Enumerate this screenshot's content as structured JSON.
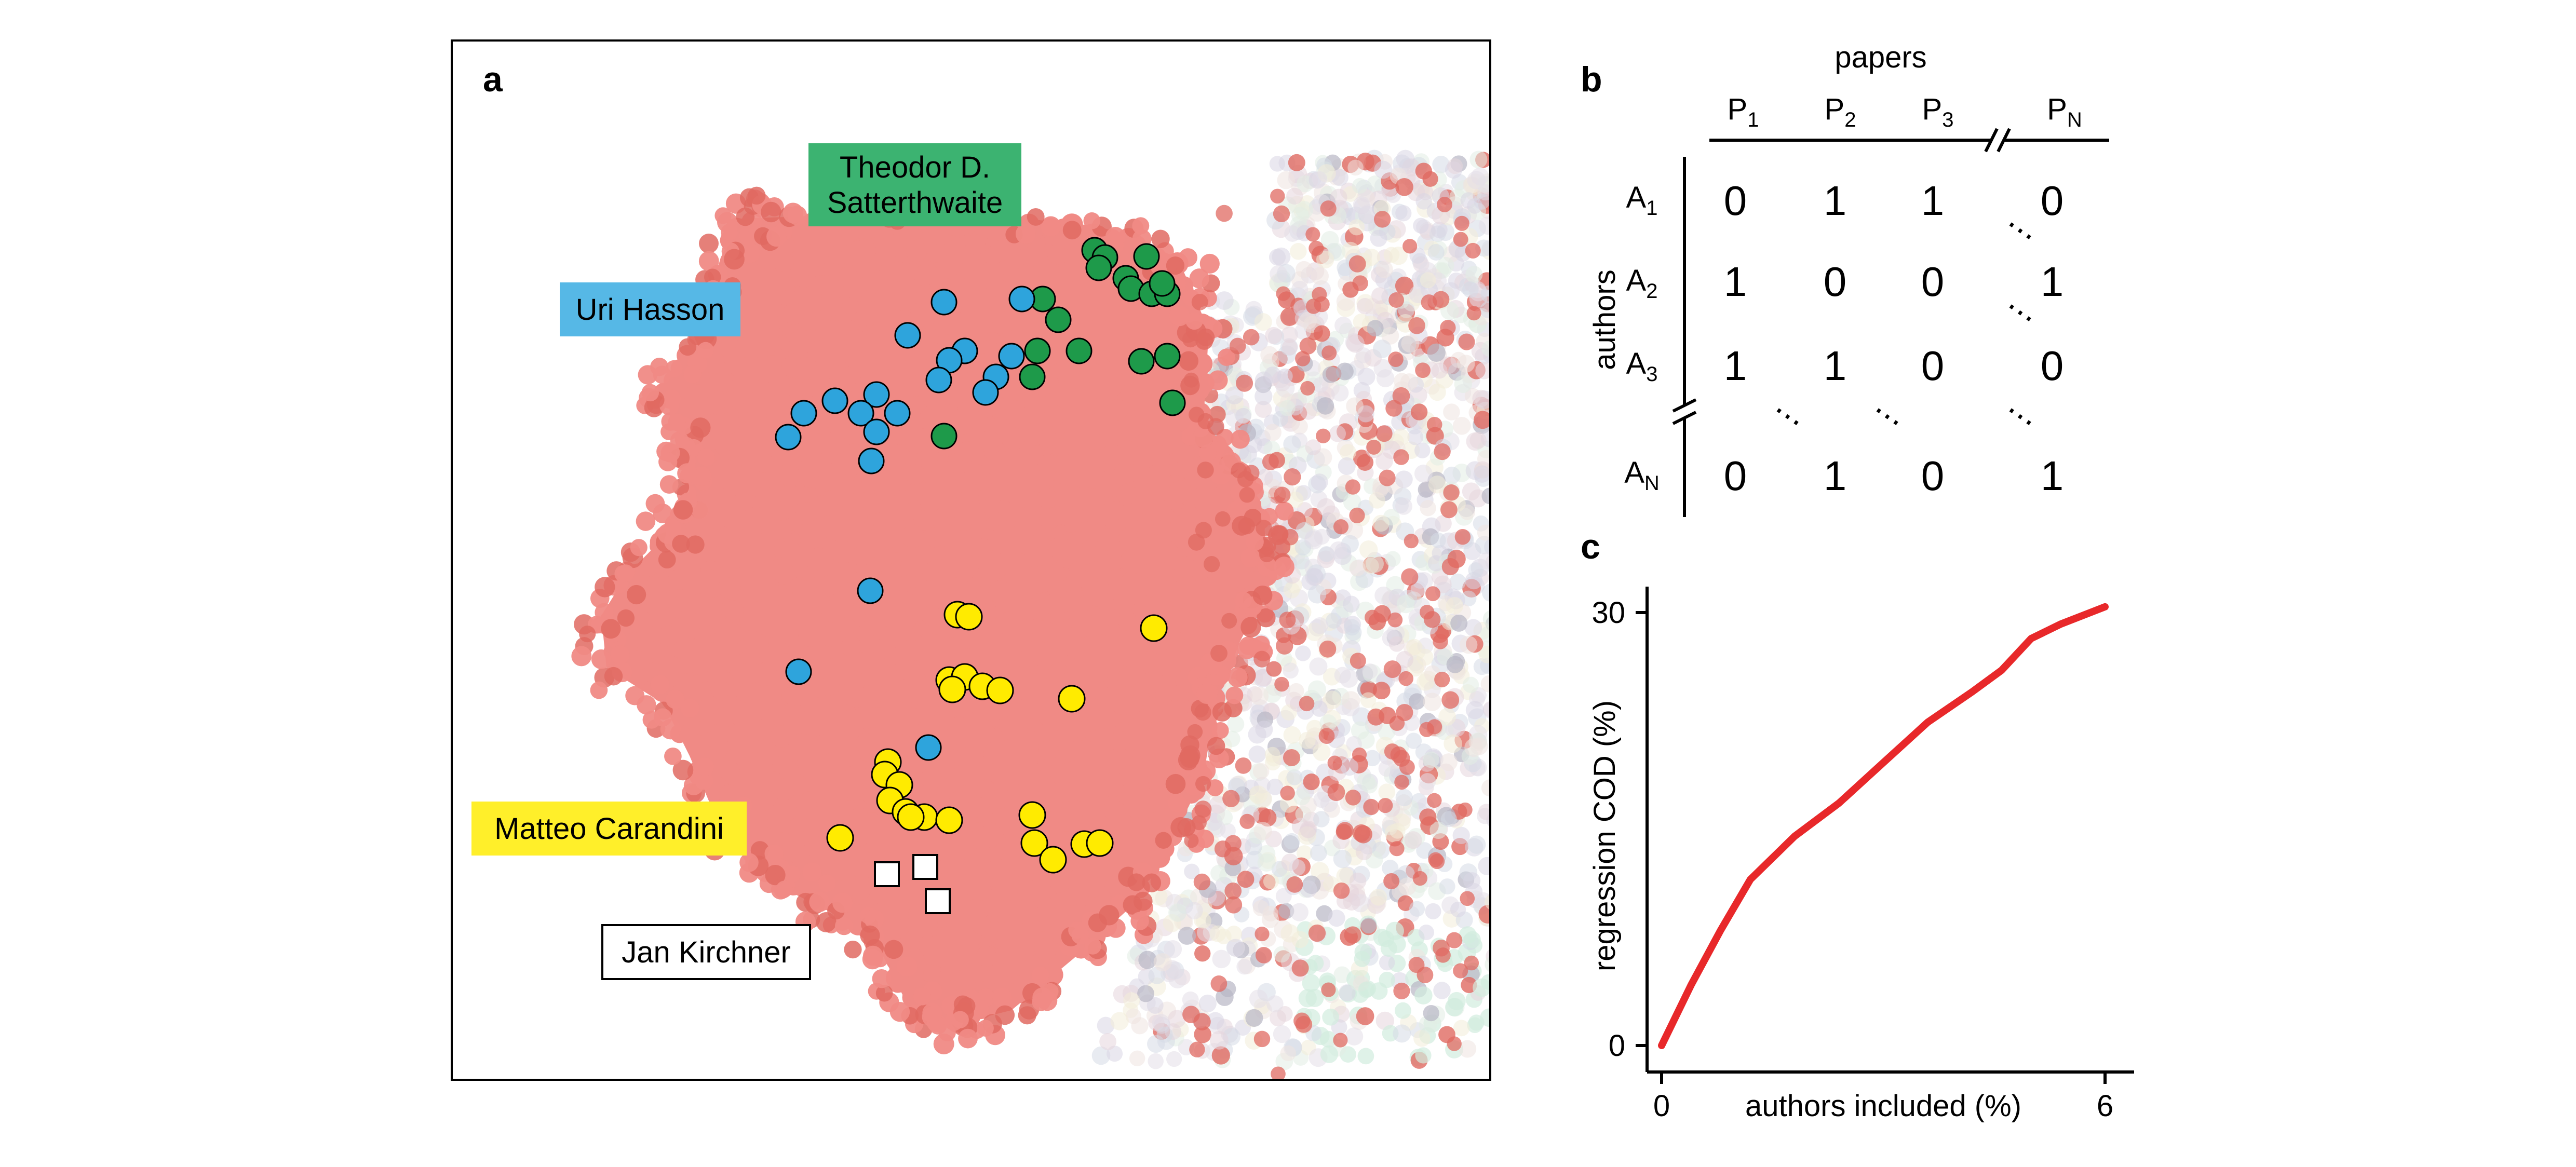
{
  "panel_a": {
    "label": "a",
    "annotations": {
      "satterthwaite": {
        "line1": "Theodor D.",
        "line2": "Satterthwaite",
        "color": "#3cb371"
      },
      "hasson": {
        "text": "Uri Hasson",
        "color": "#56b8e6"
      },
      "carandini": {
        "text": "Matteo Carandini",
        "color": "#ffef2a"
      },
      "kirchner": {
        "text": "Jan Kirchner",
        "color": "#ffffff"
      }
    },
    "colors": {
      "cluster": "#f08a85",
      "cluster_dark": "#e06a62",
      "background_cloud": "#d8d6e4",
      "green_marker": "#1e9a4a",
      "blue_marker": "#2ea4dc",
      "yellow_marker": "#ffeb00",
      "square_marker": "#ffffff"
    }
  },
  "panel_b": {
    "label": "b",
    "column_header": "papers",
    "row_header": "authors",
    "columns": [
      {
        "base": "P",
        "sub": "1"
      },
      {
        "base": "P",
        "sub": "2"
      },
      {
        "base": "P",
        "sub": "3"
      },
      {
        "base": "P",
        "sub": "N"
      }
    ],
    "rows": [
      {
        "base": "A",
        "sub": "1",
        "values": [
          "0",
          "1",
          "1",
          "0"
        ]
      },
      {
        "base": "A",
        "sub": "2",
        "values": [
          "1",
          "0",
          "0",
          "1"
        ]
      },
      {
        "base": "A",
        "sub": "3",
        "values": [
          "1",
          "1",
          "0",
          "0"
        ]
      },
      {
        "base": "A",
        "sub": "N",
        "values": [
          "0",
          "1",
          "0",
          "1"
        ]
      }
    ],
    "ellipsis": "⋯"
  },
  "panel_c": {
    "label": "c",
    "chart_data": {
      "type": "line",
      "xlabel": "authors included (%)",
      "ylabel": "regression COD (%)",
      "xlim": [
        0,
        6
      ],
      "ylim": [
        0,
        30
      ],
      "xticks": [
        "0",
        "6"
      ],
      "yticks": [
        "0",
        "30"
      ],
      "line_color": "#e8282a",
      "x": [
        0,
        0.4,
        0.8,
        1.2,
        1.8,
        2.4,
        3.0,
        3.6,
        4.2,
        4.6,
        5.0,
        5.4,
        5.8,
        6.0
      ],
      "y": [
        0,
        4.2,
        8.0,
        11.5,
        14.5,
        16.8,
        19.6,
        22.4,
        24.5,
        26.0,
        28.2,
        29.2,
        30.0,
        30.4
      ]
    }
  }
}
